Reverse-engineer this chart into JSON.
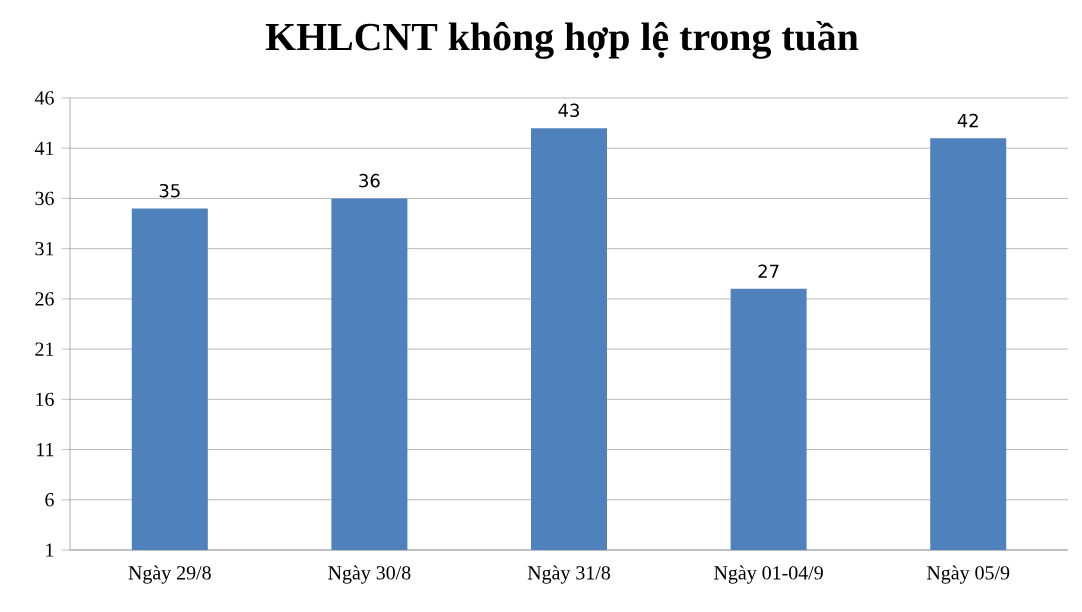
{
  "chart_data": {
    "type": "bar",
    "title": "KHLCNT không hợp lệ trong tuần",
    "categories": [
      "Ngày 29/8",
      "Ngày 30/8",
      "Ngày 31/8",
      "Ngày 01-04/9",
      "Ngày 05/9"
    ],
    "values": [
      35,
      36,
      43,
      27,
      42
    ],
    "color": "#4f81bd",
    "ylim": [
      1,
      46
    ],
    "yticks": [
      1,
      6,
      11,
      16,
      21,
      26,
      31,
      36,
      41,
      46
    ],
    "grid": "y",
    "data_labels": true
  }
}
